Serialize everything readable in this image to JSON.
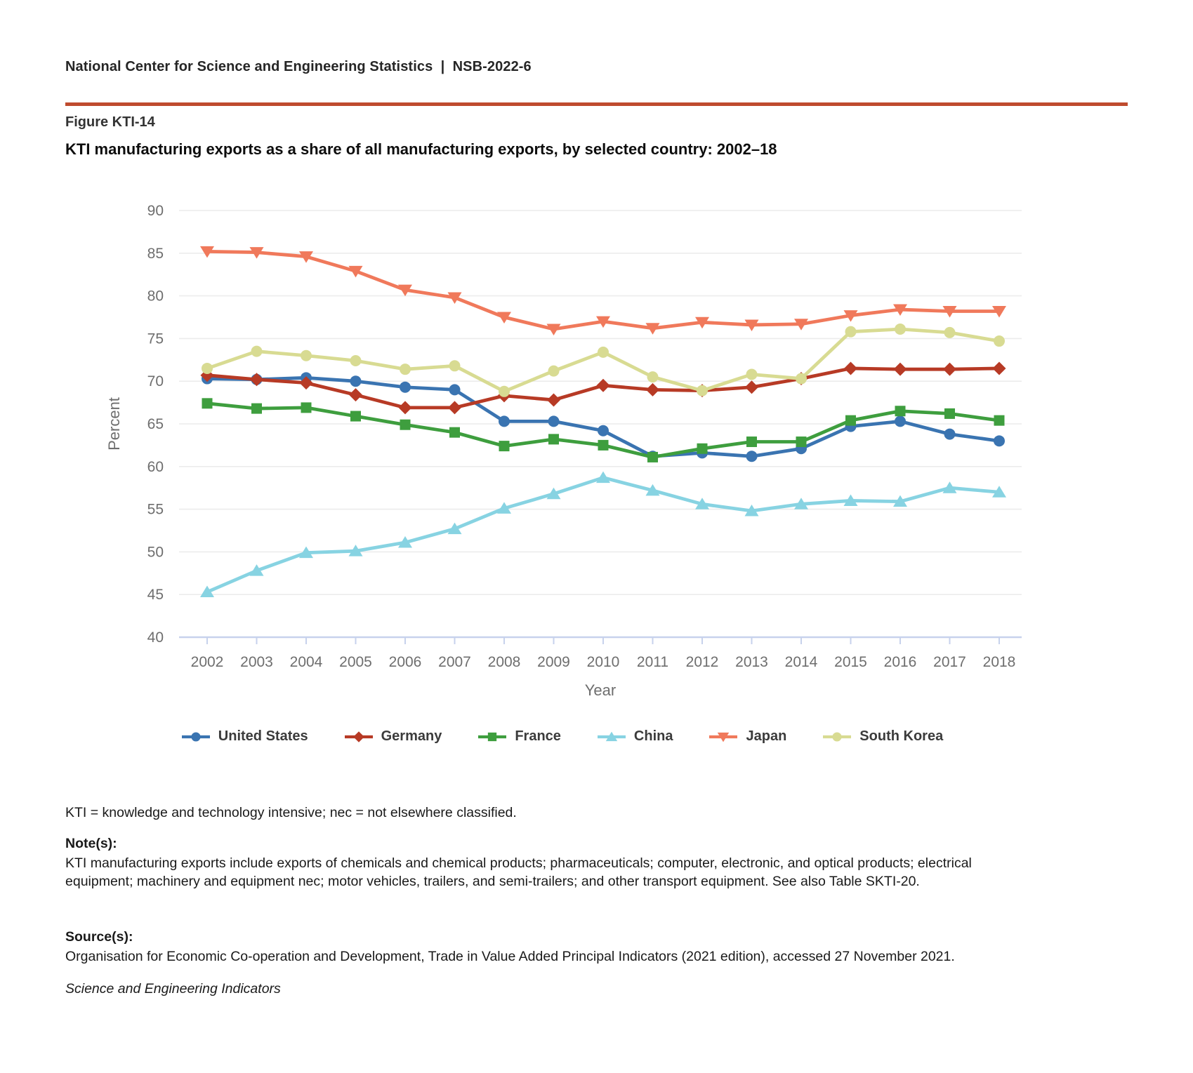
{
  "header": {
    "text": "National Center for Science and Engineering Statistics  |  NSB-2022-6"
  },
  "figure": {
    "label": "Figure KTI-14",
    "title": "KTI manufacturing exports as a share of all manufacturing exports, by selected country: 2002–18"
  },
  "chart_data": {
    "type": "line",
    "title": "KTI manufacturing exports as a share of all manufacturing exports, by selected country: 2002–18",
    "xlabel": "Year",
    "ylabel": "Percent",
    "ylim": [
      40,
      90
    ],
    "yticks": [
      40,
      45,
      50,
      55,
      60,
      65,
      70,
      75,
      80,
      85,
      90
    ],
    "grid": true,
    "legend_position": "bottom",
    "categories": [
      2002,
      2003,
      2004,
      2005,
      2006,
      2007,
      2008,
      2009,
      2010,
      2011,
      2012,
      2013,
      2014,
      2015,
      2016,
      2017,
      2018
    ],
    "series": [
      {
        "name": "United States",
        "color": "#3A74B1",
        "marker": "circle",
        "values": [
          70.3,
          70.2,
          70.4,
          70.0,
          69.3,
          69.0,
          65.3,
          65.3,
          64.2,
          61.2,
          61.6,
          61.2,
          62.1,
          64.7,
          65.3,
          63.8,
          63.0
        ]
      },
      {
        "name": "Germany",
        "color": "#B73A25",
        "marker": "diamond",
        "values": [
          70.7,
          70.2,
          69.8,
          68.4,
          66.9,
          66.9,
          68.3,
          67.8,
          69.5,
          69.0,
          68.9,
          69.3,
          70.3,
          71.5,
          71.4,
          71.4,
          71.5
        ]
      },
      {
        "name": "France",
        "color": "#3E9E3E",
        "marker": "square",
        "values": [
          67.4,
          66.8,
          66.9,
          65.9,
          64.9,
          64.0,
          62.4,
          63.2,
          62.5,
          61.1,
          62.1,
          62.9,
          62.9,
          65.4,
          66.5,
          66.2,
          65.4
        ]
      },
      {
        "name": "China",
        "color": "#87D3E2",
        "marker": "triangle-up",
        "values": [
          45.3,
          47.8,
          49.9,
          50.1,
          51.1,
          52.7,
          55.1,
          56.8,
          58.7,
          57.2,
          55.6,
          54.8,
          55.6,
          56.0,
          55.9,
          57.5,
          57.0
        ]
      },
      {
        "name": "Japan",
        "color": "#F0795B",
        "marker": "triangle-down",
        "values": [
          85.2,
          85.1,
          84.6,
          82.9,
          80.7,
          79.8,
          77.5,
          76.1,
          77.0,
          76.2,
          76.9,
          76.6,
          76.7,
          77.7,
          78.4,
          78.2,
          78.2
        ]
      },
      {
        "name": "South Korea",
        "color": "#D8DB92",
        "marker": "circle",
        "values": [
          71.5,
          73.5,
          73.0,
          72.4,
          71.4,
          71.8,
          68.8,
          71.2,
          73.4,
          70.5,
          68.9,
          70.8,
          70.3,
          75.8,
          76.1,
          75.7,
          74.7
        ]
      }
    ],
    "colors": {
      "gridline": "#ECECEC",
      "axis": "#C7D2EC",
      "tick_label": "#6E6E6E",
      "axis_title": "#6E6E6E"
    }
  },
  "footer": {
    "abbreviations": "KTI = knowledge and technology intensive; nec = not elsewhere classified.",
    "notes_label": "Note(s):",
    "notes": "KTI manufacturing exports include exports of chemicals and chemical products; pharmaceuticals; computer, electronic, and optical products; electrical equipment; machinery and equipment nec; motor vehicles, trailers, and semi-trailers; and other transport equipment. See also Table SKTI-20.",
    "sources_label": "Source(s):",
    "sources": "Organisation for Economic Co-operation and Development, Trade in Value Added Principal Indicators (2021 edition), accessed 27 November 2021.",
    "journal": "Science and Engineering Indicators"
  },
  "accent_color": "#BF4B2E"
}
